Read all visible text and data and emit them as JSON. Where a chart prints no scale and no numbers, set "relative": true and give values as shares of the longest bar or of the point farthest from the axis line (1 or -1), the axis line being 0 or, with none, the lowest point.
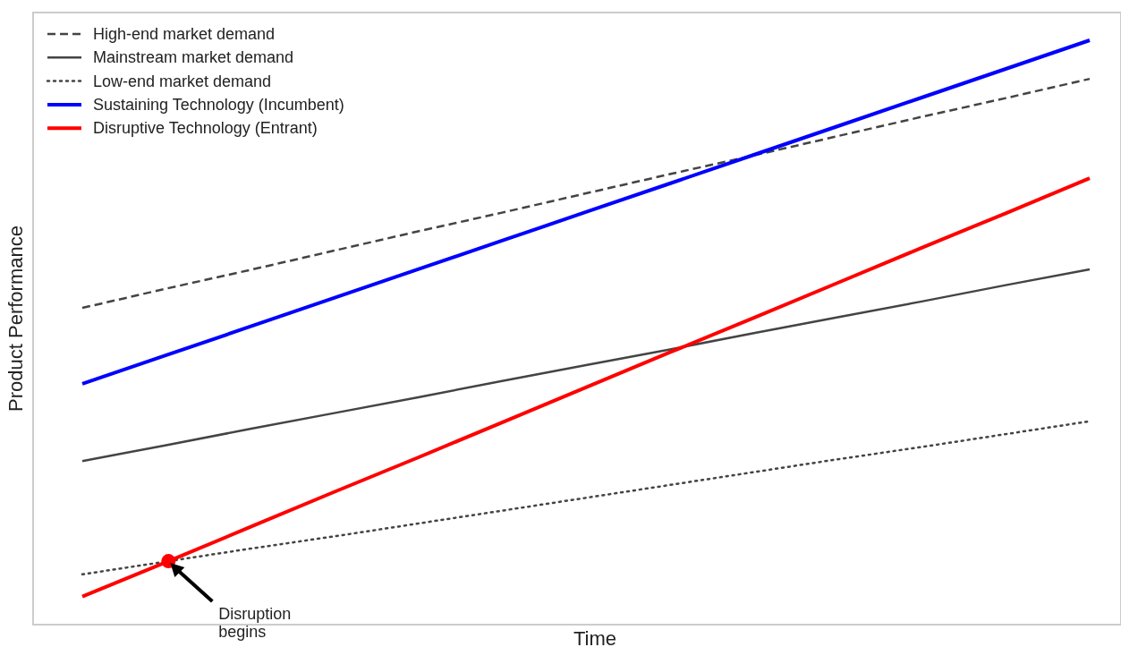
{
  "chart_data": {
    "type": "line",
    "relative": true,
    "xlabel": "Time",
    "ylabel": "Product Performance",
    "legend": "top left",
    "grid": false,
    "categories": [
      null,
      null,
      null,
      null,
      null,
      null,
      null,
      null,
      null,
      null,
      null,
      null,
      null
    ],
    "series": [
      {
        "name": "High-end market demand",
        "color": "#444444",
        "line_style": "dashed",
        "values": [
          0.542,
          0.575,
          0.607,
          0.64,
          0.673,
          0.705,
          0.738,
          0.771,
          0.803,
          0.836,
          0.869,
          0.901,
          0.934
        ]
      },
      {
        "name": "Mainstream market demand",
        "color": "#444444",
        "line_style": "solid",
        "values": [
          0.28,
          0.307,
          0.335,
          0.362,
          0.389,
          0.417,
          0.444,
          0.471,
          0.499,
          0.526,
          0.553,
          0.581,
          0.608
        ]
      },
      {
        "name": "Low-end market demand",
        "color": "#444444",
        "line_style": "dotted",
        "values": [
          0.086,
          0.108,
          0.13,
          0.151,
          0.173,
          0.195,
          0.217,
          0.239,
          0.261,
          0.283,
          0.304,
          0.326,
          0.348
        ]
      },
      {
        "name": "Sustaining Technology (Incumbent)",
        "color": "#0000ff",
        "line_style": "solid",
        "values": [
          0.412,
          0.461,
          0.51,
          0.559,
          0.608,
          0.657,
          0.706,
          0.755,
          0.804,
          0.853,
          0.902,
          0.951,
          1.0
        ]
      },
      {
        "name": "Disruptive Technology (Entrant)",
        "color": "#ff0000",
        "line_style": "solid",
        "values": [
          0.048,
          0.107,
          0.167,
          0.227,
          0.286,
          0.346,
          0.406,
          0.466,
          0.525,
          0.585,
          0.645,
          0.704,
          0.764
        ]
      }
    ],
    "annotations": [
      "Disruption begins"
    ]
  }
}
